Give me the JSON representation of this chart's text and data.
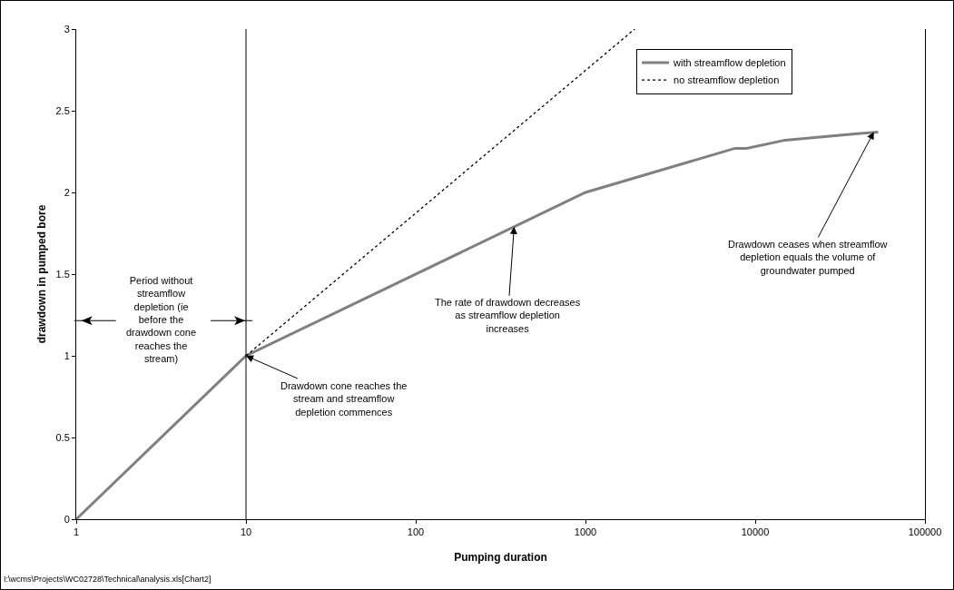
{
  "chart_data": {
    "type": "line",
    "xlabel": "Pumping duration",
    "ylabel": "drawdown in pumped bore",
    "log": "x",
    "xlim": [
      1,
      100000
    ],
    "xticks": [
      1,
      10,
      100,
      1000,
      10000,
      100000
    ],
    "ylim": [
      0,
      3
    ],
    "yticks": [
      0,
      0.5,
      1,
      1.5,
      2,
      2.5,
      3
    ],
    "grid": false,
    "legend": "top right",
    "marker": "none",
    "series": [
      {
        "name": "with streamflow depletion",
        "color": "#808080",
        "line_style": "solid",
        "x": [
          1,
          10,
          1000,
          7600,
          8900,
          15000,
          40000,
          53000
        ],
        "values": [
          0,
          1,
          2,
          2.27,
          2.27,
          2.32,
          2.36,
          2.37
        ]
      },
      {
        "name": "no streamflow depletion",
        "color": "#000000",
        "line_style": "dotted",
        "x": [
          10,
          1950
        ],
        "values": [
          1,
          3
        ]
      }
    ],
    "ref_lines": [
      {
        "axis": "x",
        "value": 10,
        "label": null,
        "color": "#000000"
      }
    ],
    "annotations": [
      "Period without streamflow depletion (ie before the drawdown cone reaches the stream)",
      {
        "text": "Drawdown cone reaches the stream and streamflow depletion commences",
        "x": 10,
        "y": 1
      },
      {
        "text": "The rate of drawdown decreases as streamflow depletion increases",
        "x": 380,
        "y": 1.79
      },
      {
        "text": "Drawdown ceases when streamflow depletion equals the volume of groundwater pumped",
        "x": 50000,
        "y": 2.37
      },
      "I:\\wcms\\Projects\\WC02728\\Technical\\analysis.xls[Chart2]"
    ]
  }
}
